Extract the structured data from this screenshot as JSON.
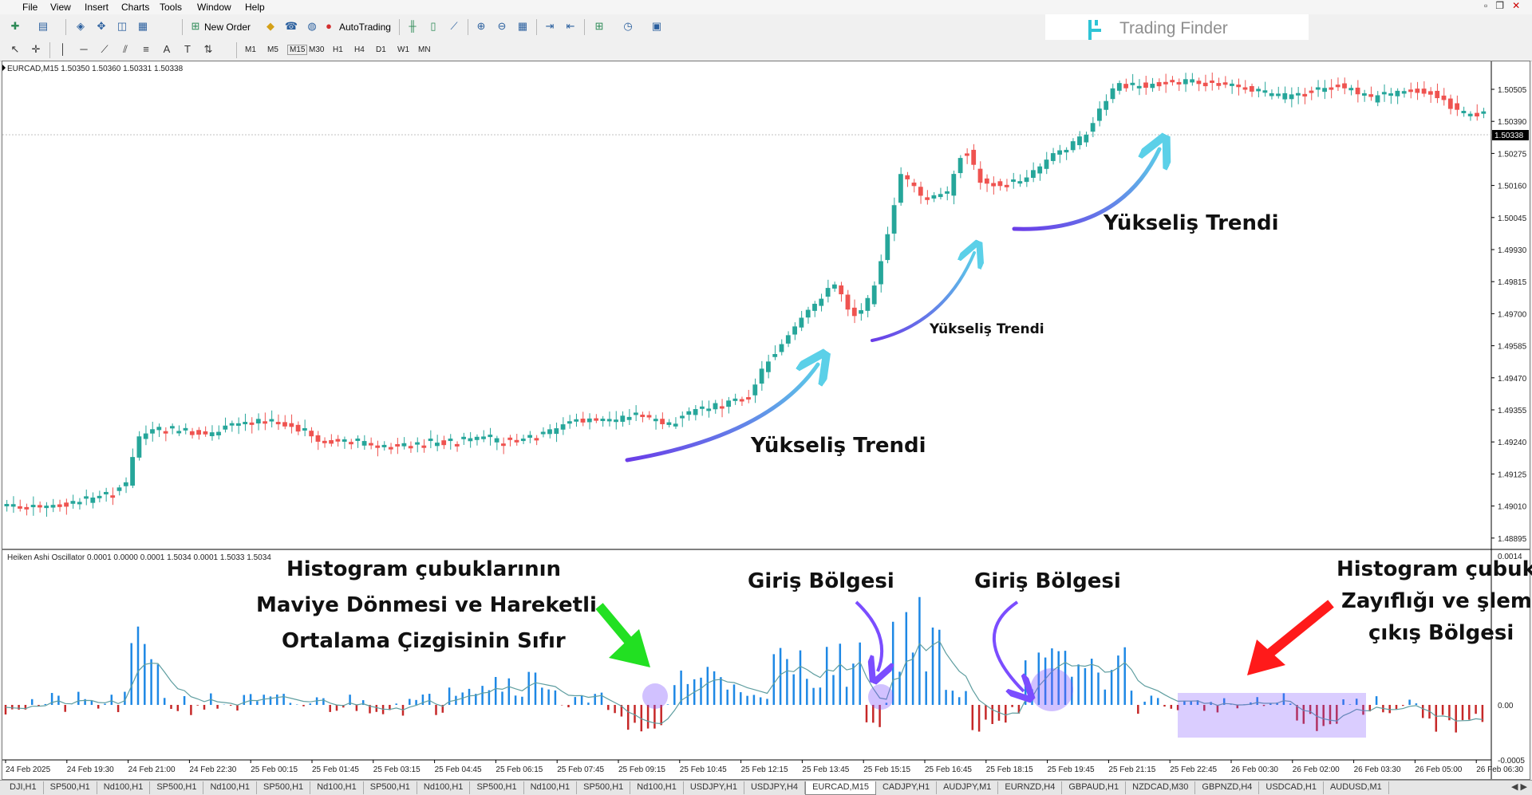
{
  "menu": [
    "File",
    "View",
    "Insert",
    "Charts",
    "Tools",
    "Window",
    "Help"
  ],
  "toolbar": {
    "new_order": "New Order",
    "auto_trading": "AutoTrading"
  },
  "timeframes": [
    "M1",
    "M5",
    "M15",
    "M30",
    "H1",
    "H4",
    "D1",
    "W1",
    "MN"
  ],
  "logo": "Trading Finder",
  "chart": {
    "title": "EURCAD,M15  1.50350 1.50360 1.50331 1.50338",
    "indicator_title": "Heiken Ashi Oscillator 0.0001 0.0000 0.0001 1.5034 0.0001 1.5033 1.5034",
    "price_labels": [
      "1.50505",
      "1.50390",
      "1.50275",
      "1.50160",
      "1.50045",
      "1.49930",
      "1.49815",
      "1.49700",
      "1.49585",
      "1.49470",
      "1.49355",
      "1.49240",
      "1.49125",
      "1.49010",
      "1.48895"
    ],
    "current_price": "1.50338",
    "osc_labels": [
      "0.0014",
      "0.00",
      "-0.0005"
    ],
    "time_labels": [
      "24 Feb 2025",
      "24 Feb 19:30",
      "24 Feb 21:00",
      "24 Feb 22:30",
      "25 Feb 00:15",
      "25 Feb 01:45",
      "25 Feb 03:15",
      "25 Feb 04:45",
      "25 Feb 06:15",
      "25 Feb 07:45",
      "25 Feb 09:15",
      "25 Feb 10:45",
      "25 Feb 12:15",
      "25 Feb 13:45",
      "25 Feb 15:15",
      "25 Feb 16:45",
      "25 Feb 18:15",
      "25 Feb 19:45",
      "25 Feb 21:15",
      "25 Feb 22:45",
      "26 Feb 00:30",
      "26 Feb 02:00",
      "26 Feb 03:30",
      "26 Feb 05:00",
      "26 Feb 06:30"
    ],
    "colors": {
      "bull": "#26a69a",
      "bear": "#ef5350",
      "hist_pos": "#1e88e5",
      "hist_neg": "#c62828",
      "arrow": "#7b4dff"
    }
  },
  "annotations": {
    "trend1": "Yükseliş Trendi",
    "trend2": "Yükseliş Trendi",
    "trend3": "Yükseliş Trendi",
    "entry1": "Giriş Bölgesi",
    "entry2": "Giriş Bölgesi",
    "left_line1": "Histogram çubuklarının",
    "left_line2": "Maviye Dönmesi ve Hareketli",
    "left_line3": "Ortalama Çizgisinin Sıfır",
    "right_line1": "Histogram çubuk",
    "right_line2": "Zayıflığı ve şlem",
    "right_line3": "çıkış Bölgesi"
  },
  "tabs": [
    "DJI,H1",
    "SP500,H1",
    "Nd100,H1",
    "SP500,H1",
    "Nd100,H1",
    "SP500,H1",
    "Nd100,H1",
    "SP500,H1",
    "Nd100,H1",
    "SP500,H1",
    "Nd100,H1",
    "SP500,H1",
    "Nd100,H1",
    "USDJPY,H1",
    "USDJPY,H4",
    "EURCAD,M15",
    "CADJPY,H1",
    "AUDJPY,M1",
    "EURNZD,H4",
    "GBPAUD,H1",
    "NZDCAD,M30",
    "GBPNZD,H4",
    "USDCAD,H1",
    "AUDUSD,M1"
  ],
  "active_tab": "EURCAD,M15"
}
